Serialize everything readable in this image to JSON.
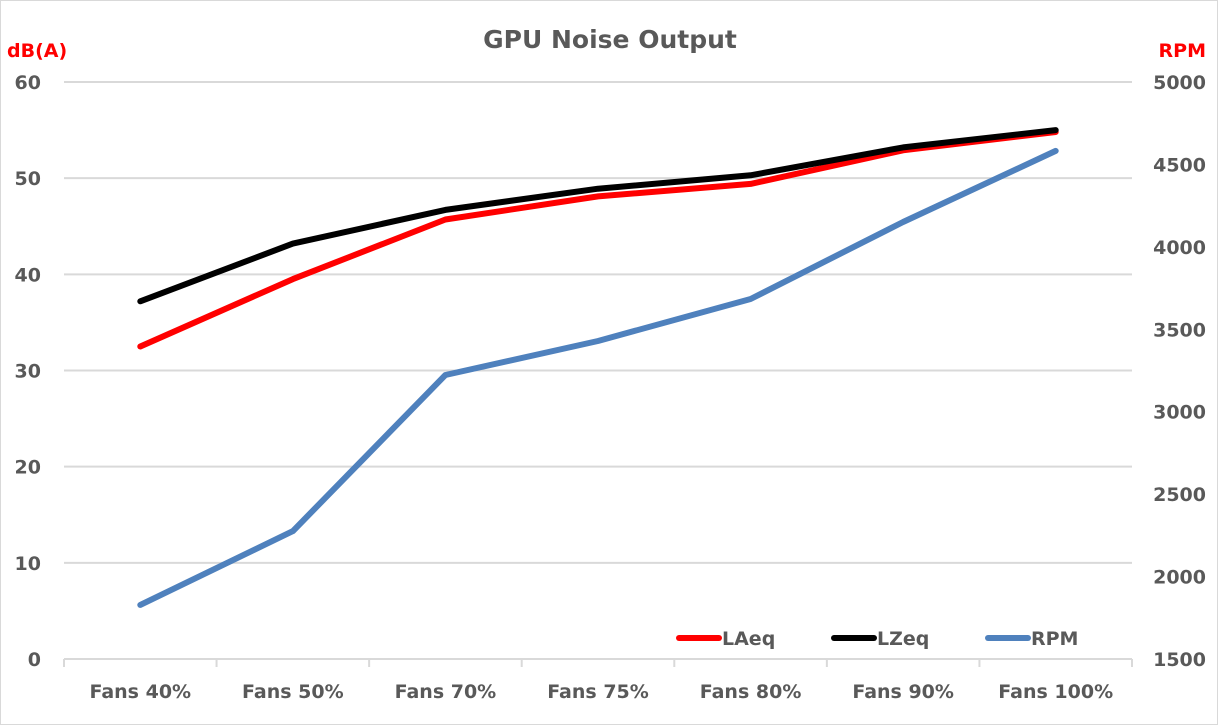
{
  "chart_data": {
    "type": "line",
    "title": "GPU Noise Output",
    "xlabel": "",
    "ylabel": "dB(A)",
    "y2label": "RPM",
    "categories": [
      "Fans 40%",
      "Fans 50%",
      "Fans 70%",
      "Fans 75%",
      "Fans 80%",
      "Fans 90%",
      "Fans 100%"
    ],
    "ylim": [
      0,
      60
    ],
    "yticks": [
      "0",
      "10",
      "20",
      "30",
      "40",
      "50",
      "60"
    ],
    "y2lim": [
      1500,
      5000
    ],
    "y2ticks": [
      "1500",
      "2000",
      "2500",
      "3000",
      "3500",
      "4000",
      "4500",
      "5000"
    ],
    "grid": true,
    "legend_position": "bottom-right",
    "series": [
      {
        "name": "LAeq",
        "axis": "left",
        "color": "#ff0000",
        "values": [
          32.5,
          39.5,
          45.7,
          48.1,
          49.4,
          52.9,
          54.8
        ]
      },
      {
        "name": "LZeq",
        "axis": "left",
        "color": "#000000",
        "values": [
          37.2,
          43.2,
          46.7,
          48.9,
          50.3,
          53.2,
          55.0
        ]
      },
      {
        "name": "RPM",
        "axis": "right",
        "color": "#4f81bd",
        "values": [
          1828,
          2276,
          3223,
          3429,
          3684,
          4151,
          4582
        ]
      }
    ]
  }
}
